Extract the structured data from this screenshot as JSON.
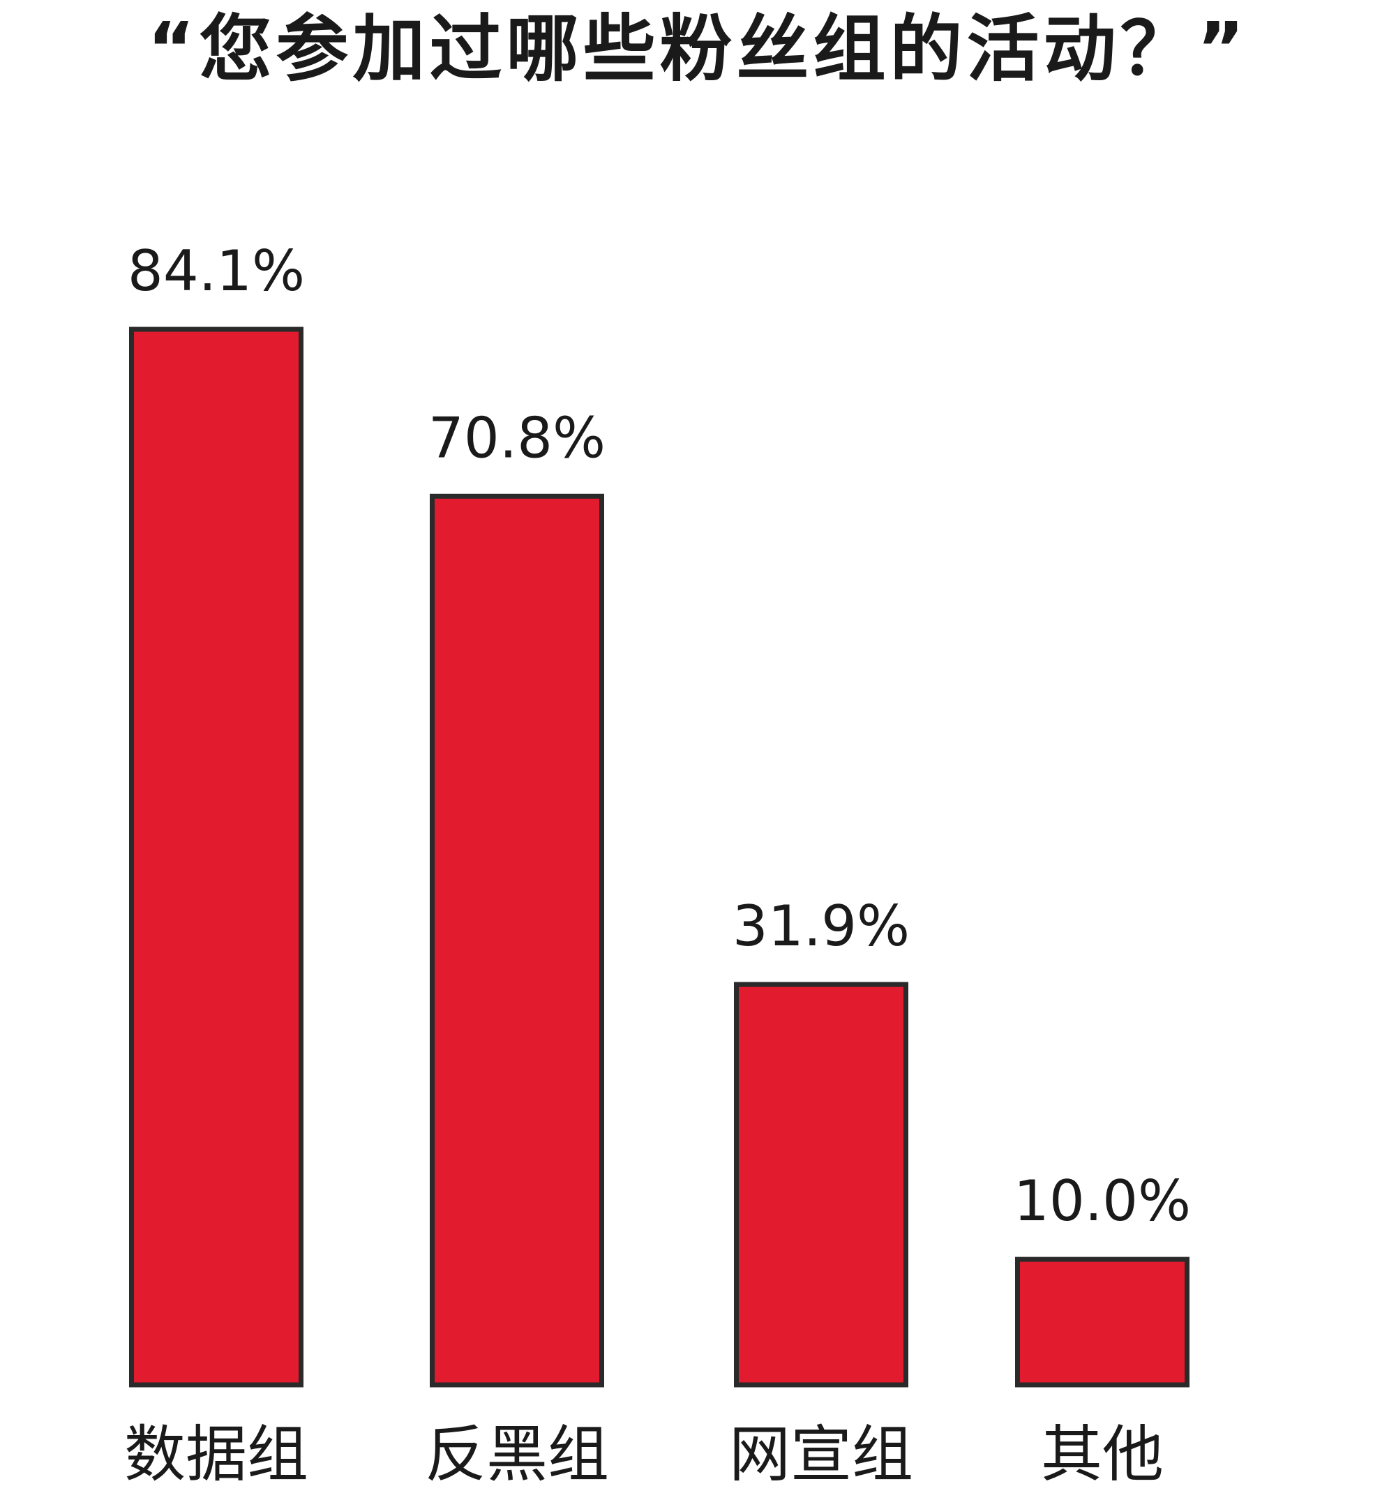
{
  "chart_data": {
    "type": "bar",
    "title": "“您参加过哪些粉丝组的活动？”",
    "categories": [
      "数据组",
      "反黑组",
      "网宣组",
      "其他"
    ],
    "values": [
      84.1,
      70.8,
      31.9,
      10.0
    ],
    "value_labels": [
      "84.1%",
      "70.8%",
      "31.9%",
      "10.0%"
    ],
    "unit": "%",
    "xlabel": "",
    "ylabel": "",
    "ylim": [
      0,
      84.1
    ],
    "grid": false,
    "legend": "none",
    "colors": {
      "bar_fill": "#E31B2F",
      "bar_stroke": "#2a2a2a",
      "text": "#1a1a1a",
      "background": "#ffffff"
    }
  }
}
